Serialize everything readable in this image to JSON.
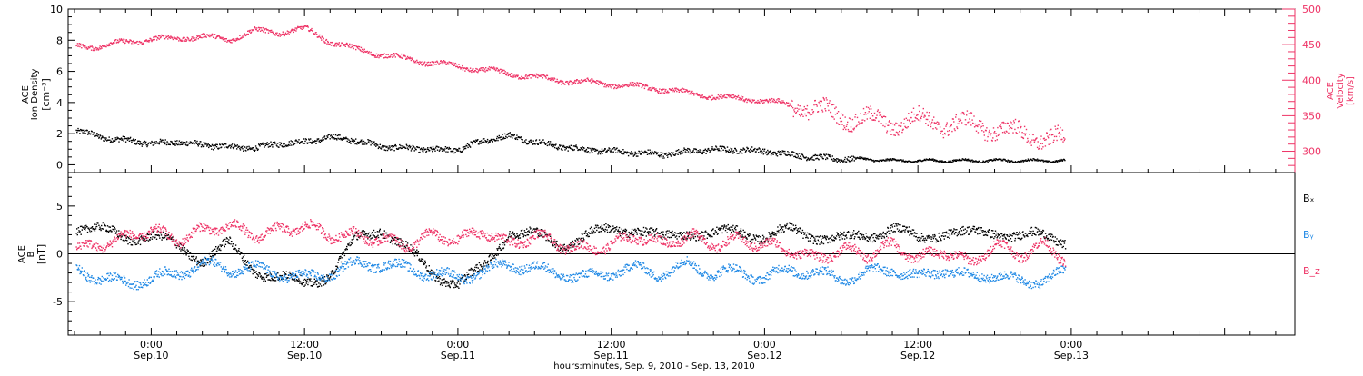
{
  "figure": {
    "x_title": "hours:minutes, Sep. 9, 2010 - Sep. 13, 2010",
    "time_range_hours": [
      -6.5,
      89.5
    ],
    "time_ticks": [
      {
        "time": "0:00",
        "date": "Sep.10",
        "t": 0
      },
      {
        "time": "12:00",
        "date": "Sep.10",
        "t": 12
      },
      {
        "time": "0:00",
        "date": "Sep.11",
        "t": 24
      },
      {
        "time": "12:00",
        "date": "Sep.11",
        "t": 36
      },
      {
        "time": "0:00",
        "date": "Sep.12",
        "t": 48
      },
      {
        "time": "12:00",
        "date": "Sep.12",
        "t": 60
      },
      {
        "time": "0:00",
        "date": "Sep.13",
        "t": 72
      }
    ],
    "colors": {
      "black": "#000000",
      "pink": "#ee3366",
      "blue": "#1e88e5"
    }
  },
  "chart_data": [
    {
      "type": "scatter",
      "panel": "top",
      "ylabel": [
        "ACE",
        "Ion Density",
        "[cm⁻³]"
      ],
      "ylim": [
        -0.5,
        10
      ],
      "yticks": [
        "0",
        "2",
        "4",
        "6",
        "8",
        "10"
      ],
      "y2label": [
        "ACE",
        "Velocity",
        "[km/s]"
      ],
      "y2lim": [
        270,
        500
      ],
      "y2ticks": [
        "300",
        "350",
        "400",
        "450",
        "500"
      ],
      "series": [
        {
          "key": "density",
          "axis": "left",
          "color": "#000000",
          "x": [
            -6,
            -4,
            -2,
            0,
            2,
            4,
            6,
            8,
            10,
            12,
            14,
            16,
            18,
            20,
            22,
            24,
            26,
            28,
            30,
            32,
            34,
            36,
            38,
            40,
            42,
            44,
            46,
            48,
            50,
            52,
            54,
            56,
            58,
            60,
            62,
            64,
            66,
            68,
            70,
            71.5
          ],
          "y": [
            2.3,
            1.8,
            1.6,
            1.4,
            1.5,
            1.3,
            1.2,
            1.1,
            1.4,
            1.5,
            1.8,
            1.6,
            1.2,
            1.1,
            1.0,
            1.0,
            1.6,
            1.9,
            1.5,
            1.2,
            1.0,
            0.9,
            0.8,
            0.7,
            0.9,
            1.0,
            1.0,
            0.9,
            0.7,
            0.5,
            0.4,
            0.4,
            0.3,
            0.3,
            0.3,
            0.3,
            0.3,
            0.3,
            0.3,
            0.3
          ]
        },
        {
          "key": "velocity",
          "axis": "right",
          "color": "#ee3366",
          "x": [
            -6,
            -4,
            -2,
            0,
            2,
            4,
            6,
            8,
            10,
            12,
            14,
            16,
            18,
            20,
            22,
            24,
            26,
            28,
            30,
            32,
            34,
            36,
            38,
            40,
            42,
            44,
            46,
            48,
            50,
            52,
            54,
            56,
            58,
            60,
            62,
            64,
            66,
            68,
            70,
            71.5
          ],
          "y": [
            450,
            448,
            455,
            458,
            460,
            462,
            458,
            470,
            468,
            473,
            455,
            444,
            437,
            430,
            425,
            420,
            415,
            410,
            405,
            400,
            398,
            395,
            392,
            388,
            382,
            378,
            375,
            372,
            366,
            360,
            350,
            345,
            340,
            345,
            340,
            338,
            333,
            325,
            320,
            315
          ]
        }
      ]
    },
    {
      "type": "scatter",
      "panel": "bottom",
      "ylabel": [
        "ACE",
        "B",
        "[nT]"
      ],
      "ylim": [
        -8.5,
        8.5
      ],
      "yticks": [
        "-5",
        "0",
        "5"
      ],
      "legend": [
        "Bₓ",
        "Bᵧ",
        "B_z"
      ],
      "legend_position": "right",
      "series": [
        {
          "key": "bx",
          "name": "Bₓ",
          "color": "#000000",
          "x": [
            -6,
            -4,
            -2,
            0,
            2,
            4,
            6,
            8,
            10,
            12,
            14,
            16,
            18,
            20,
            22,
            24,
            26,
            28,
            30,
            32,
            34,
            36,
            38,
            40,
            42,
            44,
            46,
            48,
            50,
            52,
            54,
            56,
            58,
            60,
            62,
            64,
            66,
            68,
            70,
            71.5
          ],
          "y": [
            3.0,
            2.5,
            1.8,
            2.0,
            0.8,
            -0.5,
            1.0,
            -1.5,
            -2.5,
            -3.0,
            -2.0,
            1.5,
            2.8,
            0.5,
            -2.0,
            -3.0,
            -1.5,
            2.5,
            2.0,
            1.0,
            2.0,
            2.5,
            2.8,
            1.5,
            2.5,
            2.0,
            2.5,
            1.8,
            2.5,
            2.0,
            1.5,
            2.0,
            2.8,
            1.5,
            2.5,
            2.0,
            2.5,
            1.8,
            2.0,
            1.5
          ]
        },
        {
          "key": "by",
          "name": "Bᵧ",
          "color": "#1e88e5",
          "x": [
            -6,
            -4,
            -2,
            0,
            2,
            4,
            6,
            8,
            10,
            12,
            14,
            16,
            18,
            20,
            22,
            24,
            26,
            28,
            30,
            32,
            34,
            36,
            38,
            40,
            42,
            44,
            46,
            48,
            50,
            52,
            54,
            56,
            58,
            60,
            62,
            64,
            66,
            68,
            70,
            71.5
          ],
          "y": [
            -1.5,
            -2.5,
            -3.0,
            -2.5,
            -2.0,
            -1.0,
            -1.5,
            -1.5,
            -2.0,
            -2.5,
            -2.0,
            -1.0,
            -1.0,
            -1.5,
            -2.0,
            -2.5,
            -1.8,
            -1.0,
            -1.5,
            -2.0,
            -2.5,
            -1.8,
            -1.5,
            -2.0,
            -1.0,
            -2.0,
            -1.8,
            -2.5,
            -1.5,
            -2.0,
            -2.5,
            -2.0,
            -1.5,
            -2.5,
            -1.5,
            -2.5,
            -2.0,
            -3.0,
            -2.5,
            -2.0
          ]
        },
        {
          "key": "bz",
          "name": "B_z",
          "color": "#ee3366",
          "x": [
            -6,
            -4,
            -2,
            0,
            2,
            4,
            6,
            8,
            10,
            12,
            14,
            16,
            18,
            20,
            22,
            24,
            26,
            28,
            30,
            32,
            34,
            36,
            38,
            40,
            42,
            44,
            46,
            48,
            50,
            52,
            54,
            56,
            58,
            60,
            62,
            64,
            66,
            68,
            70,
            71.5
          ],
          "y": [
            0.5,
            1.0,
            1.8,
            2.5,
            1.5,
            2.5,
            3.0,
            2.0,
            2.5,
            3.0,
            2.0,
            2.0,
            1.5,
            1.0,
            2.0,
            1.5,
            2.5,
            1.0,
            2.0,
            1.0,
            0.5,
            1.0,
            2.0,
            1.0,
            2.0,
            1.0,
            1.5,
            1.0,
            0.5,
            -0.5,
            0.5,
            0.0,
            1.0,
            -0.5,
            0.5,
            -1.0,
            1.0,
            0.0,
            1.0,
            -0.5
          ]
        }
      ]
    }
  ]
}
